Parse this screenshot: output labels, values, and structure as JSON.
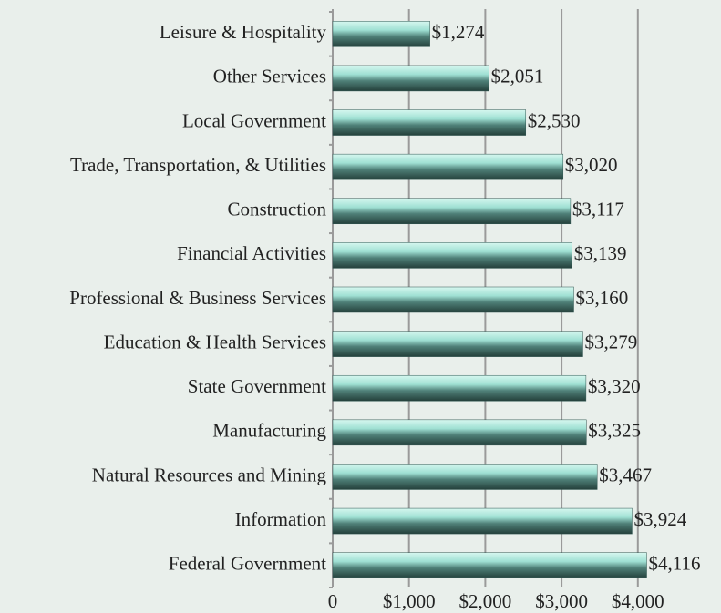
{
  "chart_data": {
    "type": "bar",
    "orientation": "horizontal",
    "categories": [
      "Leisure & Hospitality",
      "Other Services",
      "Local Government",
      "Trade, Transportation, & Utilities",
      "Construction",
      "Financial Activities",
      "Professional & Business Services",
      "Education & Health Services",
      "State Government",
      "Manufacturing",
      "Natural Resources and Mining",
      "Information",
      "Federal Government"
    ],
    "values": [
      1274,
      2051,
      2530,
      3020,
      3117,
      3139,
      3160,
      3279,
      3320,
      3325,
      3467,
      3924,
      4116
    ],
    "value_labels": [
      "$1,274",
      "$2,051",
      "$2,530",
      "$3,020",
      "$3,117",
      "$3,139",
      "$3,160",
      "$3,279",
      "$3,320",
      "$3,325",
      "$3,467",
      "$3,924",
      "$4,116"
    ],
    "color": "#2f5550",
    "xlim": [
      0,
      5000
    ],
    "xticks": [
      0,
      {
        "value": 1000,
        "label": "$1,000"
      },
      {
        "value": 2000,
        "label": "$2,000"
      },
      {
        "value": 3000,
        "label": "$3,000"
      },
      {
        "value": 4000,
        "label": "$4,000"
      }
    ],
    "grid": true
  }
}
